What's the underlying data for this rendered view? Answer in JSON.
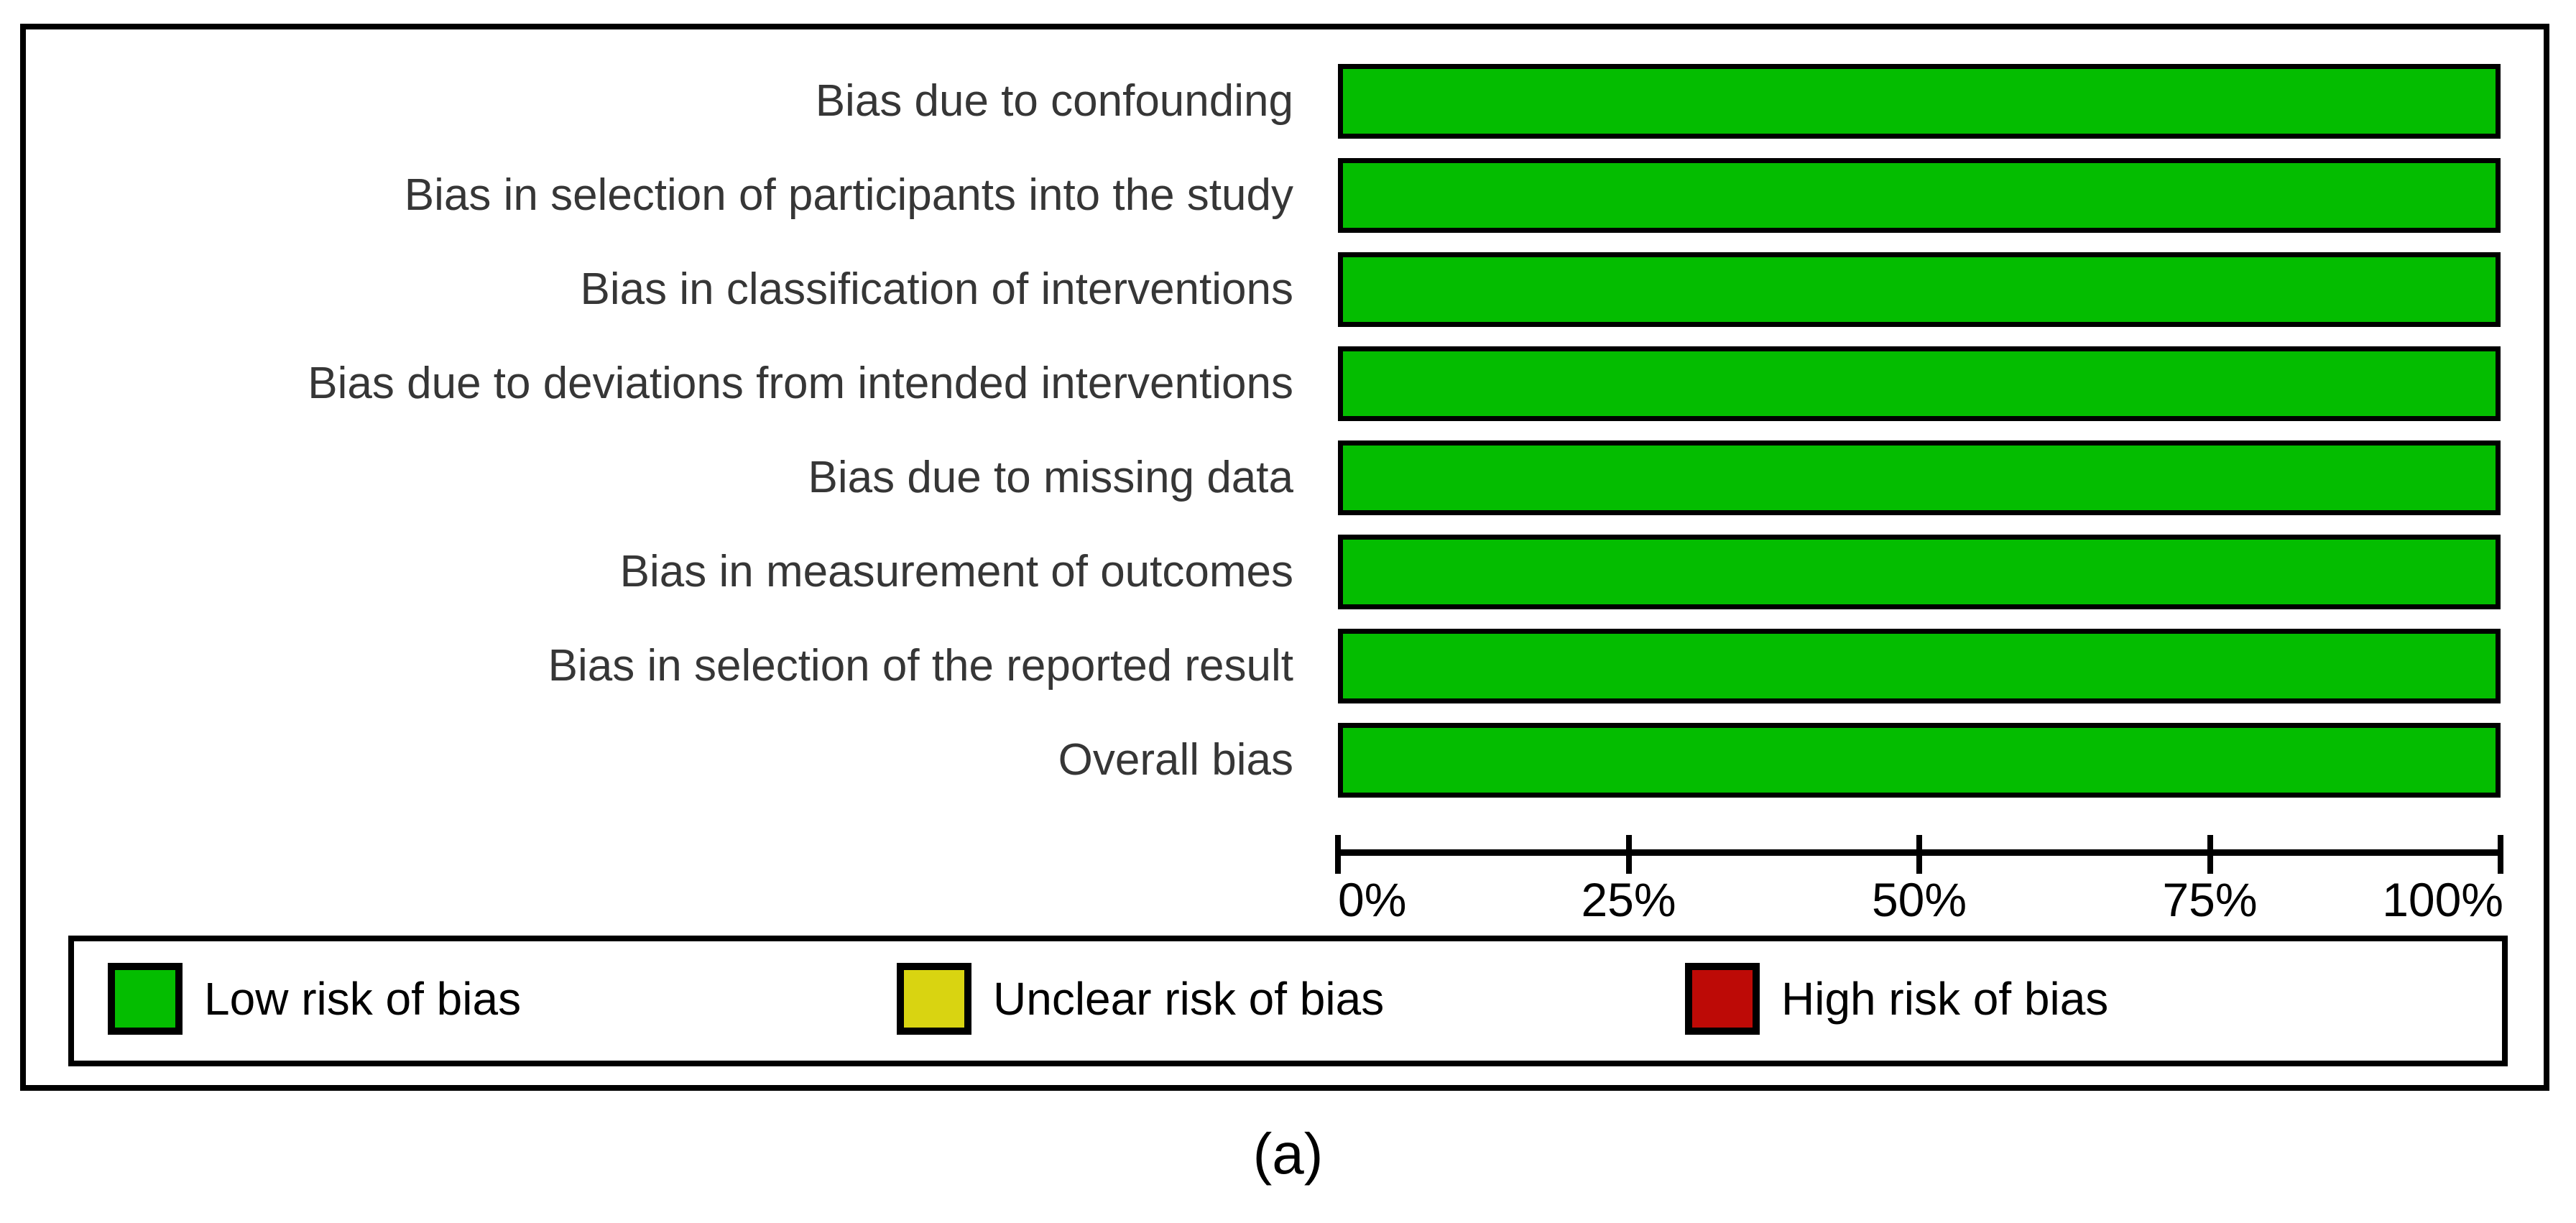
{
  "chart_data": {
    "type": "bar",
    "orientation": "horizontal",
    "title": "",
    "xlabel": "",
    "ylabel": "",
    "categories": [
      "Bias due to confounding",
      "Bias in selection of participants into the study",
      "Bias in classification of interventions",
      "Bias due to deviations from intended interventions",
      "Bias due to missing data",
      "Bias in measurement of outcomes",
      "Bias in selection of the reported result",
      "Overall bias"
    ],
    "series": [
      {
        "name": "Low risk of bias",
        "color": "#04bd00",
        "values": [
          100,
          100,
          100,
          100,
          100,
          100,
          100,
          100
        ]
      },
      {
        "name": "Unclear risk of bias",
        "color": "#d9d411",
        "values": [
          0,
          0,
          0,
          0,
          0,
          0,
          0,
          0
        ]
      },
      {
        "name": "High risk of bias",
        "color": "#bd0a06",
        "values": [
          0,
          0,
          0,
          0,
          0,
          0,
          0,
          0
        ]
      }
    ],
    "x_axis": {
      "range": [
        0,
        100
      ],
      "tick_values": [
        0,
        25,
        50,
        75,
        100
      ],
      "tick_labels": [
        "0%",
        "25%",
        "50%",
        "75%",
        "100%"
      ],
      "grid": false
    },
    "legend": {
      "position": "bottom",
      "entries": [
        {
          "label": "Low risk of bias",
          "color": "#04bd00"
        },
        {
          "label": "Unclear risk of bias",
          "color": "#d9d411"
        },
        {
          "label": "High risk of bias",
          "color": "#bd0a06"
        }
      ]
    },
    "caption": "(a)",
    "bar_border_color": "#000000",
    "text_color": "#363636"
  }
}
